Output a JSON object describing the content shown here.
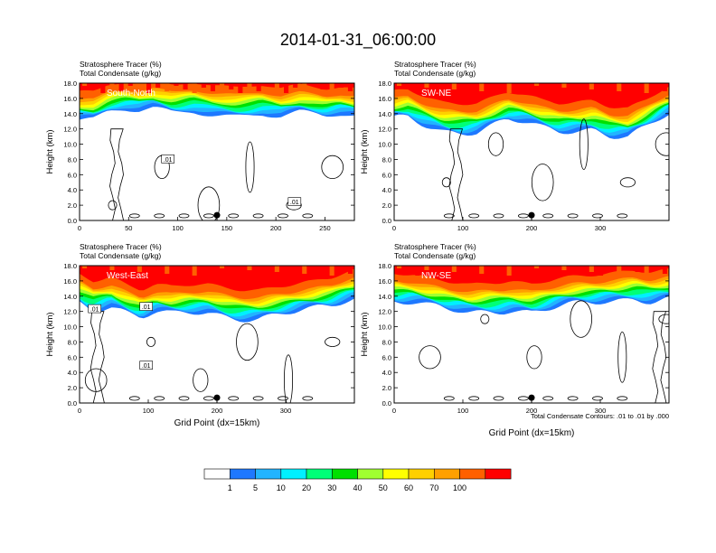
{
  "title": "2014-01-31_06:00:00",
  "colors": {
    "bands": [
      "#ffffff",
      "#1e78ff",
      "#22b4ff",
      "#00f0ff",
      "#00ff78",
      "#00e000",
      "#a0ff30",
      "#ffff00",
      "#ffd000",
      "#ffa000",
      "#ff6000",
      "#ff0000"
    ]
  },
  "colorbar": {
    "labels": [
      "1",
      "5",
      "10",
      "20",
      "30",
      "40",
      "50",
      "60",
      "70",
      "100"
    ]
  },
  "footnote": "Total Condensate Contours: .01 to .01 by .000",
  "chart_data": [
    {
      "type": "heatmap",
      "label": "South-North",
      "title_line1": "Stratosphere Tracer   (%)",
      "title_line2": "Total Condensate   (g/kg)",
      "ylabel": "Height (km)",
      "xlabel": "",
      "xlim": [
        0,
        280
      ],
      "ylim": [
        0,
        18
      ],
      "xticks": [
        "0",
        "50",
        "100",
        "150",
        "200",
        "250"
      ],
      "xtick_values": [
        0,
        50,
        100,
        150,
        200,
        250
      ],
      "yticks": [
        "0.0",
        "2.0",
        "4.0",
        "6.0",
        "8.0",
        "10.0",
        "12.0",
        "14.0",
        "16.0",
        "18.0"
      ],
      "contour_labels": [
        ".01",
        ".01"
      ],
      "contour_label_pos": [
        [
          90,
          8.0
        ],
        [
          219,
          2.4
        ]
      ],
      "marker_x": 140,
      "tropopause_base": [
        [
          0,
          13.8
        ],
        [
          15,
          13.6
        ],
        [
          30,
          14.5
        ],
        [
          45,
          14.8
        ],
        [
          60,
          14.6
        ],
        [
          75,
          15.0
        ],
        [
          95,
          14.6
        ],
        [
          115,
          15.2
        ],
        [
          135,
          14.8
        ],
        [
          160,
          14.6
        ],
        [
          185,
          14.9
        ],
        [
          205,
          14.2
        ],
        [
          225,
          14.5
        ],
        [
          250,
          13.9
        ],
        [
          265,
          14.2
        ],
        [
          280,
          14.0
        ]
      ]
    },
    {
      "type": "heatmap",
      "label": "SW-NE",
      "title_line1": "Stratosphere Tracer   (%)",
      "title_line2": "Total Condensate   (g/kg)",
      "ylabel": "Height (km)",
      "xlabel": "",
      "xlim": [
        0,
        400
      ],
      "ylim": [
        0,
        18
      ],
      "xticks": [
        "0",
        "100",
        "200",
        "300"
      ],
      "xtick_values": [
        0,
        100,
        200,
        300
      ],
      "yticks": [
        "0.0",
        "2.0",
        "4.0",
        "6.0",
        "8.0",
        "10.0",
        "12.0",
        "14.0",
        "16.0",
        "18.0"
      ],
      "contour_labels": [],
      "contour_label_pos": [],
      "marker_x": 200,
      "tropopause_base": [
        [
          0,
          13.6
        ],
        [
          20,
          14.0
        ],
        [
          45,
          13.2
        ],
        [
          70,
          12.6
        ],
        [
          95,
          12.5
        ],
        [
          120,
          12.4
        ],
        [
          145,
          13.0
        ],
        [
          165,
          13.6
        ],
        [
          190,
          13.1
        ],
        [
          215,
          12.5
        ],
        [
          240,
          12.3
        ],
        [
          265,
          12.6
        ],
        [
          290,
          12.9
        ],
        [
          315,
          12.0
        ],
        [
          340,
          11.6
        ],
        [
          365,
          12.5
        ],
        [
          385,
          13.5
        ],
        [
          400,
          14.2
        ]
      ]
    },
    {
      "type": "heatmap",
      "label": "West-East",
      "title_line1": "Stratosphere Tracer   (%)",
      "title_line2": "Total Condensate   (g/kg)",
      "ylabel": "Height (km)",
      "xlabel": "Grid Point (dx=15km)",
      "xlim": [
        0,
        400
      ],
      "ylim": [
        0,
        18
      ],
      "xticks": [
        "0",
        "100",
        "200",
        "300"
      ],
      "xtick_values": [
        0,
        100,
        200,
        300
      ],
      "yticks": [
        "0.0",
        "2.0",
        "4.0",
        "6.0",
        "8.0",
        "10.0",
        "12.0",
        "14.0",
        "16.0",
        "18.0"
      ],
      "contour_labels": [
        ".01",
        ".01",
        ".01"
      ],
      "contour_label_pos": [
        [
          22,
          12.3
        ],
        [
          97,
          12.6
        ],
        [
          97,
          4.9
        ]
      ],
      "marker_x": 200,
      "tropopause_base": [
        [
          0,
          14.0
        ],
        [
          20,
          13.2
        ],
        [
          45,
          13.6
        ],
        [
          70,
          12.4
        ],
        [
          90,
          11.6
        ],
        [
          110,
          12.2
        ],
        [
          135,
          11.9
        ],
        [
          160,
          12.3
        ],
        [
          185,
          12.6
        ],
        [
          210,
          12.3
        ],
        [
          235,
          12.0
        ],
        [
          260,
          11.8
        ],
        [
          285,
          12.0
        ],
        [
          310,
          12.2
        ],
        [
          340,
          12.6
        ],
        [
          365,
          13.2
        ],
        [
          385,
          14.0
        ],
        [
          400,
          14.5
        ]
      ]
    },
    {
      "type": "heatmap",
      "label": "NW-SE",
      "title_line1": "Stratosphere Tracer   (%)",
      "title_line2": "Total Condensate   (g/kg)",
      "ylabel": "Height (km)",
      "xlabel": "Grid Point (dx=15km)",
      "xlim": [
        0,
        400
      ],
      "ylim": [
        0,
        18
      ],
      "xticks": [
        "0",
        "100",
        "200",
        "300"
      ],
      "xtick_values": [
        0,
        100,
        200,
        300
      ],
      "yticks": [
        "0.0",
        "2.0",
        "4.0",
        "6.0",
        "8.0",
        "10.0",
        "12.0",
        "14.0",
        "16.0",
        "18.0"
      ],
      "contour_labels": [],
      "contour_label_pos": [],
      "marker_x": 200,
      "tropopause_base": [
        [
          0,
          14.0
        ],
        [
          25,
          13.6
        ],
        [
          50,
          13.0
        ],
        [
          80,
          12.6
        ],
        [
          110,
          12.4
        ],
        [
          140,
          12.9
        ],
        [
          170,
          13.1
        ],
        [
          200,
          12.6
        ],
        [
          230,
          12.9
        ],
        [
          260,
          13.2
        ],
        [
          290,
          13.5
        ],
        [
          320,
          14.0
        ],
        [
          350,
          14.6
        ],
        [
          375,
          14.3
        ],
        [
          400,
          14.5
        ]
      ]
    }
  ]
}
